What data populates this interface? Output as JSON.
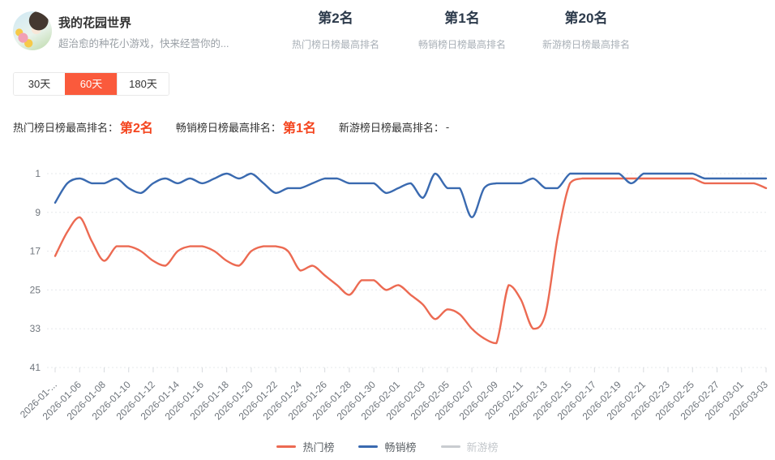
{
  "header": {
    "title": "我的花园世界",
    "subtitle": "超治愈的种花小游戏，快来经营你的...",
    "stats": [
      {
        "value": "第2名",
        "label": "热门榜日榜最高排名"
      },
      {
        "value": "第1名",
        "label": "畅销榜日榜最高排名"
      },
      {
        "value": "第20名",
        "label": "新游榜日榜最高排名"
      }
    ]
  },
  "tabs": {
    "items": [
      {
        "label": "30天",
        "active": false
      },
      {
        "label": "60天",
        "active": true
      },
      {
        "label": "180天",
        "active": false
      }
    ]
  },
  "summary": {
    "items": [
      {
        "label": "热门榜日榜最高排名：",
        "value": "第2名",
        "highlight": true
      },
      {
        "label": "畅销榜日榜最高排名：",
        "value": "第1名",
        "highlight": true
      },
      {
        "label": "新游榜日榜最高排名：",
        "value": "-",
        "highlight": false
      }
    ]
  },
  "colors": {
    "accent_tab": "#fa5a3c",
    "accent_text": "#f4451f",
    "hot_line": "#ec6a52",
    "sales_line": "#3a6ab0",
    "new_line": "#c9ccd0"
  },
  "chart_data": {
    "type": "line",
    "y_axis": {
      "ticks": [
        1,
        9,
        17,
        25,
        33,
        41
      ],
      "range": [
        1,
        41
      ],
      "inverted": true,
      "grid": "dotted"
    },
    "x_tick_labels": [
      "2026-01-...",
      "2026-01-06",
      "2026-01-08",
      "2026-01-10",
      "2026-01-12",
      "2026-01-14",
      "2026-01-16",
      "2026-01-18",
      "2026-01-20",
      "2026-01-22",
      "2026-01-24",
      "2026-01-26",
      "2026-01-28",
      "2026-01-30",
      "2026-02-01",
      "2026-02-03",
      "2026-02-05",
      "2026-02-07",
      "2026-02-09",
      "2026-02-11",
      "2026-02-13",
      "2026-02-15",
      "2026-02-17",
      "2026-02-19",
      "2026-02-21",
      "2026-02-23",
      "2026-02-25",
      "2026-02-27",
      "2026-03-01",
      "2026-03-03"
    ],
    "n_points": 59,
    "legend_position": "bottom-center",
    "series": [
      {
        "name": "热门榜",
        "color": "#ec6a52",
        "disabled": false,
        "values": [
          18,
          13,
          10,
          15,
          19,
          16,
          16,
          17,
          19,
          20,
          17,
          16,
          16,
          17,
          19,
          20,
          17,
          16,
          16,
          17,
          21,
          20,
          22,
          24,
          26,
          23,
          23,
          25,
          24,
          26,
          28,
          31,
          29,
          30,
          33,
          35,
          36,
          24,
          27,
          33,
          30,
          14,
          3,
          2,
          2,
          2,
          2,
          2,
          2,
          2,
          2,
          2,
          2,
          3,
          3,
          3,
          3,
          3,
          4
        ]
      },
      {
        "name": "畅销榜",
        "color": "#3a6ab0",
        "disabled": false,
        "values": [
          7,
          3,
          2,
          3,
          3,
          2,
          4,
          5,
          3,
          2,
          3,
          2,
          3,
          2,
          1,
          2,
          1,
          3,
          5,
          4,
          4,
          3,
          2,
          2,
          3,
          3,
          3,
          5,
          4,
          3,
          6,
          1,
          4,
          4,
          10,
          4,
          3,
          3,
          3,
          2,
          4,
          4,
          1,
          1,
          1,
          1,
          1,
          3,
          1,
          1,
          1,
          1,
          1,
          2,
          2,
          2,
          2,
          2,
          2
        ]
      },
      {
        "name": "新游榜",
        "color": "#c9ccd0",
        "disabled": true,
        "values": []
      }
    ]
  }
}
